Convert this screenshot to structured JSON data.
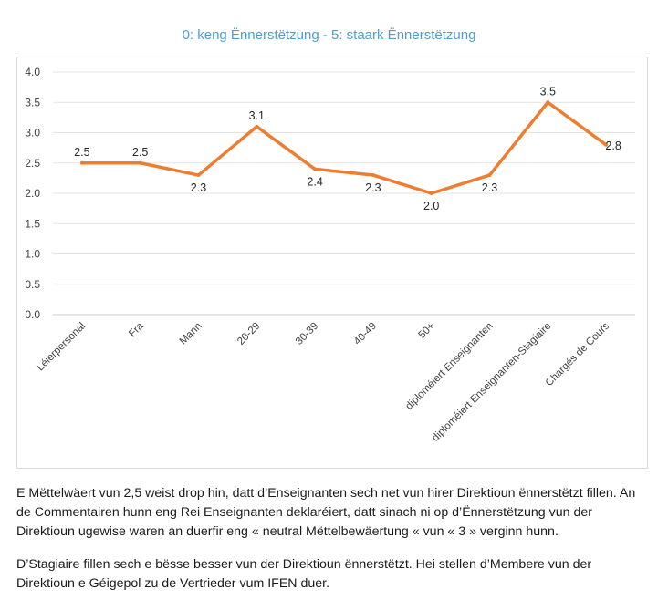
{
  "chart_data": {
    "type": "line",
    "title": "0: keng Ënnerstëtzung - 5: staark Ënnerstëtzung",
    "categories": [
      "Léierpersonal",
      "Fra",
      "Mann",
      "20-29",
      "30-39",
      "40-49",
      "50+",
      "diploméiert Enseignanten",
      "diploméiert Enseignanten-Stagiaire",
      "Chargés de Cours"
    ],
    "series": [
      {
        "values": [
          2.5,
          2.5,
          2.3,
          3.1,
          2.4,
          2.3,
          2.0,
          2.3,
          3.5,
          2.8
        ],
        "color": "#ed7d31"
      }
    ],
    "data_labels": [
      "2.5",
      "2.5",
      "2.3",
      "3.1",
      "2.4",
      "2.3",
      "2.0",
      "2.3",
      "3.5",
      "2.8"
    ],
    "y_ticks": [
      "0.0",
      "0.5",
      "1.0",
      "1.5",
      "2.0",
      "2.5",
      "3.0",
      "3.5",
      "4.0"
    ],
    "ylim": [
      0,
      4
    ],
    "grid": true,
    "title_color": "#4a9fd0"
  },
  "paragraphs": [
    "E Mëttelwäert vun 2,5 weist drop hin, datt d’Enseignanten sech net vun hirer Direktioun ënnerstëtzt fillen. An de Commentairen hunn eng Rei Enseignanten deklaréiert, datt sinach ni op d’Ënnerstëtzung vun der Direktioun ugewise waren an duerfir eng « neutral Mëttelbewäertung «  vun « 3 » verginn hunn.",
    "D’Stagiaire fillen sech e bësse besser vun der Direktioun ënnerstëtzt. Hei stellen d’Membere vun der Direktioun e Géigepol zu de Vertrieder vum IFEN duer."
  ]
}
